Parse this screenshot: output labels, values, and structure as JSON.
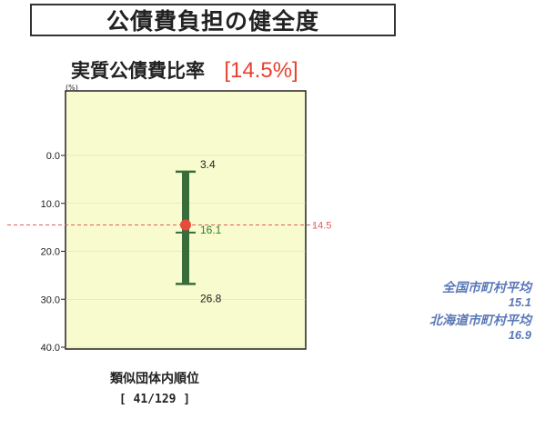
{
  "title": "公債費負担の健全度",
  "subtitle": {
    "label": "実質公債費比率",
    "value": "[14.5%]"
  },
  "unit": "(%)",
  "rank": {
    "label": "類似団体内順位",
    "value": "[ 41/129 ]"
  },
  "averages": [
    {
      "name": "全国市町村平均",
      "value": "15.1"
    },
    {
      "name": "北海道市町村平均",
      "value": "16.9"
    }
  ],
  "chart_data": {
    "type": "range",
    "y_axis": {
      "range": [
        0,
        40
      ],
      "inverted": true,
      "ticks": [
        "0.0",
        "10.0",
        "20.0",
        "30.0",
        "40.0"
      ]
    },
    "range_bar": {
      "min": 3.4,
      "median": 16.1,
      "max": 26.8,
      "labels": [
        "3.4",
        "16.1",
        "26.8"
      ]
    },
    "current": {
      "value": 14.5,
      "label": "14.5"
    },
    "colors": {
      "plot_bg": "#f8fbcd",
      "bar": "#3a6b3a",
      "marker": "#e84a3c",
      "ref_line": "#e85a5a",
      "median_text": "#2e7d32"
    }
  }
}
